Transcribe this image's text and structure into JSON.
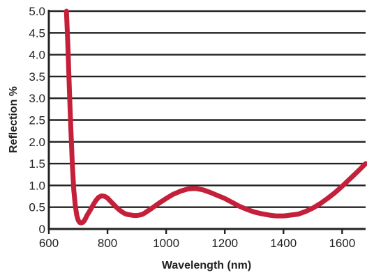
{
  "chart_data": {
    "type": "line",
    "title": "",
    "xlabel": "Wavelength (nm)",
    "ylabel": "Reflection %",
    "xlim": [
      600,
      1680
    ],
    "ylim": [
      0,
      5.0
    ],
    "x_ticks": [
      "600",
      "800",
      "1000",
      "1200",
      "1400",
      "1600"
    ],
    "y_ticks": [
      "0",
      "0.5",
      "1.0",
      "1.5",
      "2.0",
      "2.5",
      "3.0",
      "3.5",
      "4.0",
      "4.5",
      "5.0"
    ],
    "grid": "horizontal",
    "colors": {
      "line": "#c4203a",
      "grid": "#222222",
      "axis": "#222222"
    },
    "series": [
      {
        "x": [
          660,
          665,
          670,
          675,
          680,
          685,
          690,
          695,
          700,
          705,
          710,
          715,
          720,
          725,
          730,
          740,
          750,
          760,
          770,
          780,
          790,
          800,
          810,
          820,
          830,
          840,
          850,
          860,
          870,
          880,
          890,
          900,
          910,
          920,
          930,
          950,
          975,
          1000,
          1025,
          1050,
          1075,
          1100,
          1125,
          1150,
          1175,
          1200,
          1225,
          1250,
          1275,
          1300,
          1325,
          1350,
          1375,
          1400,
          1425,
          1450,
          1475,
          1500,
          1525,
          1550,
          1575,
          1600,
          1625,
          1650,
          1680
        ],
        "y": [
          5.0,
          4.2,
          3.2,
          2.3,
          1.5,
          0.9,
          0.55,
          0.32,
          0.2,
          0.15,
          0.14,
          0.15,
          0.18,
          0.24,
          0.31,
          0.42,
          0.54,
          0.65,
          0.73,
          0.76,
          0.75,
          0.71,
          0.64,
          0.57,
          0.5,
          0.44,
          0.39,
          0.35,
          0.33,
          0.32,
          0.31,
          0.31,
          0.32,
          0.34,
          0.38,
          0.47,
          0.59,
          0.7,
          0.8,
          0.87,
          0.92,
          0.93,
          0.9,
          0.84,
          0.77,
          0.7,
          0.61,
          0.52,
          0.45,
          0.39,
          0.35,
          0.32,
          0.3,
          0.3,
          0.32,
          0.34,
          0.4,
          0.48,
          0.58,
          0.7,
          0.83,
          0.98,
          1.14,
          1.3,
          1.5
        ]
      }
    ]
  }
}
